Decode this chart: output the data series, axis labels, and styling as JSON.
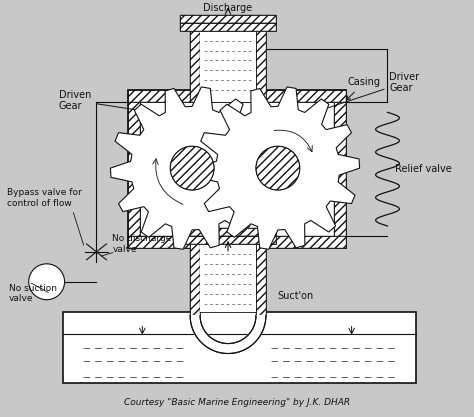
{
  "bg_color": "#c8c8c8",
  "line_color": "#111111",
  "title_text": "Courtesy \"Basic Marine Engineering\" by J.K. DHAR",
  "labels": {
    "discharge": "Discharge",
    "driven_gear": "Driven\nGear",
    "casing": "Casing",
    "driver_gear": "Driver\nGear",
    "relief_valve": "Relief valve",
    "bypass_valve": "Bypass valve for\ncontrol of flow",
    "no_discharge": "No discharge\nvalve",
    "no_suction": "No suction\nvalve",
    "suction": "Suct'on"
  },
  "figsize": [
    4.74,
    4.17
  ],
  "dpi": 100
}
